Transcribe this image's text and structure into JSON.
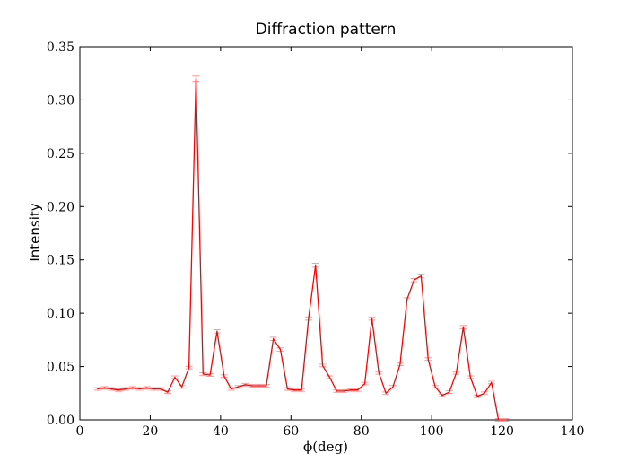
{
  "chart_data": {
    "type": "line",
    "title": "Diffraction pattern",
    "xlabel": "ϕ(deg)",
    "ylabel": "Intensity",
    "xlim": [
      0,
      140
    ],
    "ylim": [
      0,
      0.35
    ],
    "xticks": [
      0,
      20,
      40,
      60,
      80,
      100,
      120,
      140
    ],
    "yticks": [
      0.0,
      0.05,
      0.1,
      0.15,
      0.2,
      0.25,
      0.3,
      0.35
    ],
    "xtick_labels": [
      "0",
      "20",
      "40",
      "60",
      "80",
      "100",
      "120",
      "140"
    ],
    "ytick_labels": [
      "0.00",
      "0.05",
      "0.10",
      "0.15",
      "0.20",
      "0.25",
      "0.30",
      "0.35"
    ],
    "grid": false,
    "legend": "none",
    "series": [
      {
        "color": "#ff0000",
        "errorbar_color": "#ff9999",
        "x": [
          5,
          7,
          9,
          11,
          13,
          15,
          17,
          19,
          21,
          23,
          25,
          27,
          29,
          31,
          33,
          35,
          37,
          39,
          41,
          43,
          45,
          47,
          49,
          51,
          53,
          55,
          57,
          59,
          61,
          63,
          65,
          67,
          69,
          71,
          73,
          75,
          77,
          79,
          81,
          83,
          85,
          87,
          89,
          91,
          93,
          95,
          97,
          99,
          101,
          103,
          105,
          107,
          109,
          111,
          113,
          115,
          117,
          119,
          121
        ],
        "y": [
          0.029,
          0.03,
          0.029,
          0.028,
          0.029,
          0.03,
          0.029,
          0.03,
          0.029,
          0.029,
          0.026,
          0.04,
          0.031,
          0.049,
          0.32,
          0.043,
          0.042,
          0.083,
          0.041,
          0.029,
          0.031,
          0.033,
          0.032,
          0.032,
          0.032,
          0.076,
          0.066,
          0.029,
          0.028,
          0.028,
          0.095,
          0.145,
          0.051,
          0.04,
          0.027,
          0.027,
          0.028,
          0.028,
          0.034,
          0.095,
          0.044,
          0.025,
          0.031,
          0.052,
          0.113,
          0.131,
          0.135,
          0.057,
          0.031,
          0.023,
          0.026,
          0.044,
          0.087,
          0.04,
          0.022,
          0.025,
          0.035,
          0.0,
          0.0
        ],
        "errors": [
          0.0012,
          0.0012,
          0.0012,
          0.0012,
          0.0012,
          0.0012,
          0.0012,
          0.0012,
          0.0012,
          0.0012,
          0.0012,
          0.0012,
          0.0012,
          0.0012,
          0.0025,
          0.0012,
          0.0012,
          0.0015,
          0.0012,
          0.0012,
          0.0012,
          0.0012,
          0.0012,
          0.0012,
          0.0012,
          0.0015,
          0.0015,
          0.0012,
          0.0012,
          0.0012,
          0.0015,
          0.0018,
          0.0012,
          0.0012,
          0.0012,
          0.0012,
          0.0012,
          0.0012,
          0.0012,
          0.0015,
          0.0012,
          0.0012,
          0.0012,
          0.0012,
          0.0015,
          0.0015,
          0.0018,
          0.0012,
          0.0012,
          0.0012,
          0.0012,
          0.0012,
          0.0015,
          0.0012,
          0.0012,
          0.0012,
          0.0012,
          0.0012,
          0.0012
        ]
      }
    ]
  }
}
